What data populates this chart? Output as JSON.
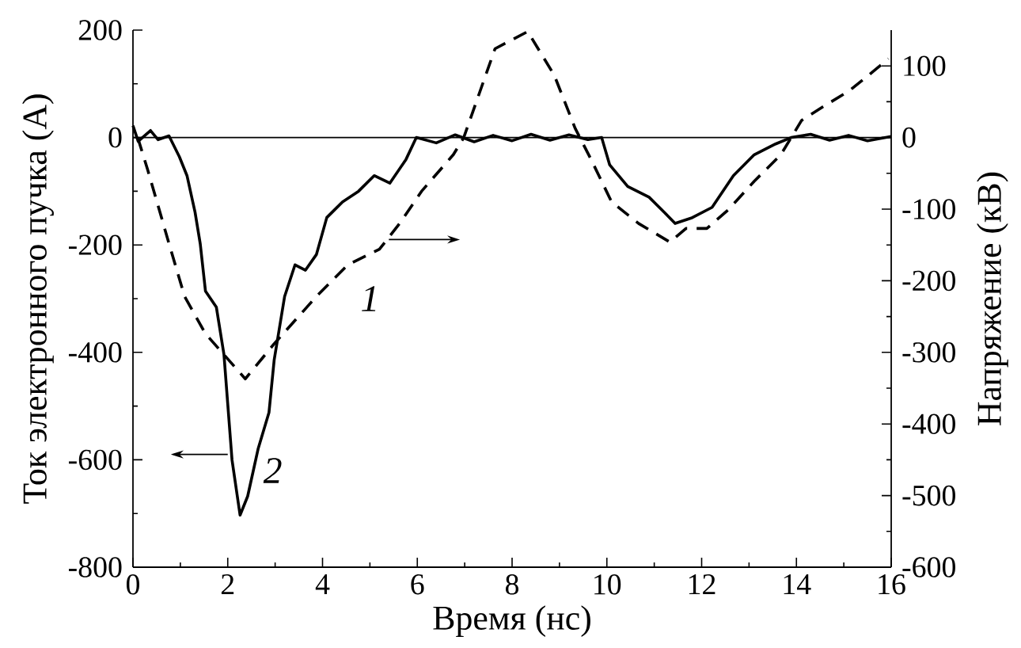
{
  "chart_data": {
    "type": "line",
    "xlabel": "Время (нс)",
    "ylabel": "Ток электронного пучка (А)",
    "y2label": "Напряжение (кВ)",
    "xlim": [
      0,
      16
    ],
    "xticks": [
      0,
      2,
      4,
      6,
      8,
      10,
      12,
      14,
      16
    ],
    "ylim": [
      -800,
      200
    ],
    "yticks": [
      -800,
      -600,
      -400,
      -200,
      0,
      200
    ],
    "y2lim": [
      -600,
      150
    ],
    "y2ticks": [
      -600,
      -500,
      -400,
      -300,
      -200,
      -100,
      0,
      100
    ],
    "series": [
      {
        "color": "#000000",
        "line_style": "dashed",
        "axis": "y2",
        "x": [
          0.1,
          0.31,
          0.76,
          1.09,
          1.53,
          2.37,
          2.98,
          3.87,
          4.53,
          5.2,
          5.64,
          6.09,
          6.76,
          6.98,
          7.64,
          8.33,
          8.89,
          9.33,
          9.67,
          10.1,
          10.67,
          11.33,
          11.67,
          12.11,
          12.56,
          13.11,
          13.67,
          14.11,
          14.56,
          15.11,
          15.67,
          15.94
        ],
        "values": [
          0,
          -45,
          -148,
          -222,
          -274,
          -337,
          -288,
          -222,
          -178,
          -156,
          -119,
          -75,
          -24,
          0,
          124,
          148,
          87,
          13,
          -31,
          -90,
          -120,
          -146,
          -127,
          -127,
          -101,
          -61,
          -24,
          24,
          43,
          65,
          95,
          110
        ]
      },
      {
        "color": "#000000",
        "line_style": "solid",
        "x": [
          0,
          0.11,
          0.37,
          0.53,
          0.76,
          0.98,
          1.14,
          1.31,
          1.42,
          1.53,
          1.76,
          1.92,
          2.09,
          2.26,
          2.42,
          2.64,
          2.87,
          2.98,
          3.2,
          3.42,
          3.64,
          3.87,
          4.09,
          4.42,
          4.76,
          5.09,
          5.42,
          5.76,
          5.98,
          6.4,
          6.8,
          7.2,
          7.6,
          8.0,
          8.4,
          8.8,
          9.2,
          9.6,
          9.89,
          10.06,
          10.44,
          10.89,
          11.22,
          11.44,
          11.78,
          12.22,
          12.67,
          13.11,
          13.56,
          13.89,
          14.3,
          14.7,
          15.1,
          15.5,
          16.0
        ],
        "values": [
          22,
          -7,
          13,
          -4,
          3,
          -36,
          -71,
          -139,
          -198,
          -286,
          -316,
          -404,
          -600,
          -703,
          -668,
          -580,
          -512,
          -414,
          -296,
          -237,
          -247,
          -218,
          -149,
          -120,
          -100,
          -71,
          -85,
          -41,
          0,
          -10,
          5,
          -8,
          4,
          -6,
          6,
          -5,
          5,
          -4,
          0,
          -51,
          -91,
          -111,
          -140,
          -160,
          -150,
          -130,
          -71,
          -32,
          -12,
          0,
          6,
          -5,
          4,
          -6,
          2
        ]
      }
    ],
    "ref_lines": [
      {
        "axis": "y",
        "value": 0,
        "color": "#000000"
      }
    ],
    "annotations": [
      "1",
      "2"
    ]
  }
}
